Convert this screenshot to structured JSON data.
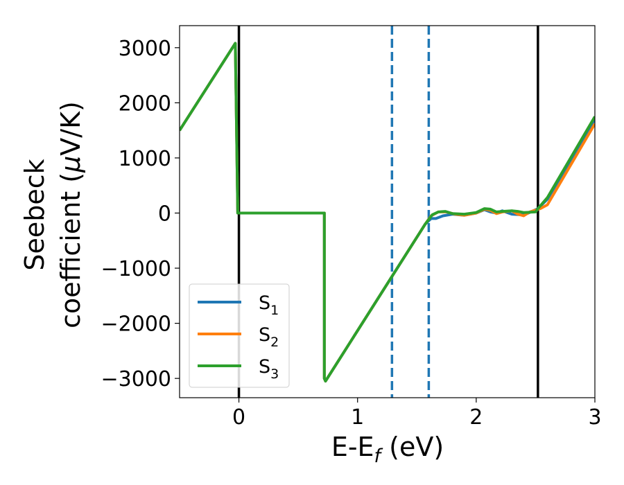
{
  "chart_data": {
    "type": "line",
    "xlabel": "E-E_f (eV)",
    "xlabel_parts": {
      "main": "E-E",
      "sub": "f",
      "rest": " (eV)"
    },
    "ylabel_line1": "Seebeck",
    "ylabel_line2_parts": {
      "main": "coefficient  (",
      "greek": "μ",
      "rest": "V/K)"
    },
    "xlim": [
      -0.5,
      3.0
    ],
    "ylim": [
      -3350,
      3400
    ],
    "xticks": [
      0,
      1,
      2,
      3
    ],
    "xtick_labels": [
      "0",
      "1",
      "2",
      "3"
    ],
    "yticks": [
      -3000,
      -2000,
      -1000,
      0,
      1000,
      2000,
      3000
    ],
    "ytick_labels": [
      "−3000",
      "−2000",
      "−1000",
      "0",
      "1000",
      "2000",
      "3000"
    ],
    "grid": false,
    "legend_position": "lower-left",
    "vlines": [
      {
        "x": 0.0,
        "style": "solid",
        "color": "#000000"
      },
      {
        "x": 2.52,
        "style": "solid",
        "color": "#000000"
      },
      {
        "x": 1.29,
        "style": "dashed",
        "color": "#1f77b4"
      },
      {
        "x": 1.6,
        "style": "dashed",
        "color": "#1f77b4"
      }
    ],
    "series": [
      {
        "name": "S1",
        "name_main": "S",
        "name_sub": "1",
        "color": "#1f77b4",
        "x": [
          -0.5,
          -0.03,
          -0.01,
          0.72,
          0.72,
          0.73,
          1.57,
          1.62,
          1.66,
          1.72,
          1.8,
          1.9,
          2.0,
          2.07,
          2.12,
          2.17,
          2.22,
          2.3,
          2.37,
          2.42,
          2.47,
          2.52,
          2.6,
          3.0
        ],
        "y": [
          1500,
          3080,
          0,
          0,
          -3000,
          -3050,
          -200,
          -100,
          -100,
          -50,
          -20,
          -40,
          0,
          60,
          20,
          0,
          40,
          -20,
          -30,
          -20,
          30,
          80,
          250,
          1700
        ]
      },
      {
        "name": "S2",
        "name_main": "S",
        "name_sub": "2",
        "color": "#ff7f0e",
        "x": [
          -0.5,
          -0.03,
          -0.01,
          0.72,
          0.72,
          0.73,
          1.57,
          1.62,
          1.68,
          1.75,
          1.82,
          1.9,
          2.0,
          2.07,
          2.12,
          2.17,
          2.22,
          2.3,
          2.35,
          2.4,
          2.45,
          2.54,
          2.6,
          3.0
        ],
        "y": [
          1500,
          3080,
          0,
          0,
          -3000,
          -3050,
          -200,
          -50,
          20,
          20,
          -20,
          -40,
          0,
          70,
          50,
          -10,
          20,
          40,
          -20,
          -50,
          20,
          80,
          150,
          1620
        ]
      },
      {
        "name": "S3",
        "name_main": "S",
        "name_sub": "3",
        "color": "#2ca02c",
        "x": [
          -0.5,
          -0.03,
          -0.01,
          0.72,
          0.72,
          0.73,
          1.57,
          1.63,
          1.68,
          1.74,
          1.8,
          1.9,
          2.0,
          2.07,
          2.12,
          2.17,
          2.22,
          2.3,
          2.35,
          2.4,
          2.5,
          2.52,
          2.6,
          3.0
        ],
        "y": [
          1500,
          3080,
          0,
          0,
          -3000,
          -3050,
          -200,
          -30,
          20,
          30,
          -10,
          -20,
          10,
          80,
          70,
          20,
          30,
          40,
          30,
          10,
          20,
          80,
          280,
          1750
        ]
      }
    ]
  }
}
